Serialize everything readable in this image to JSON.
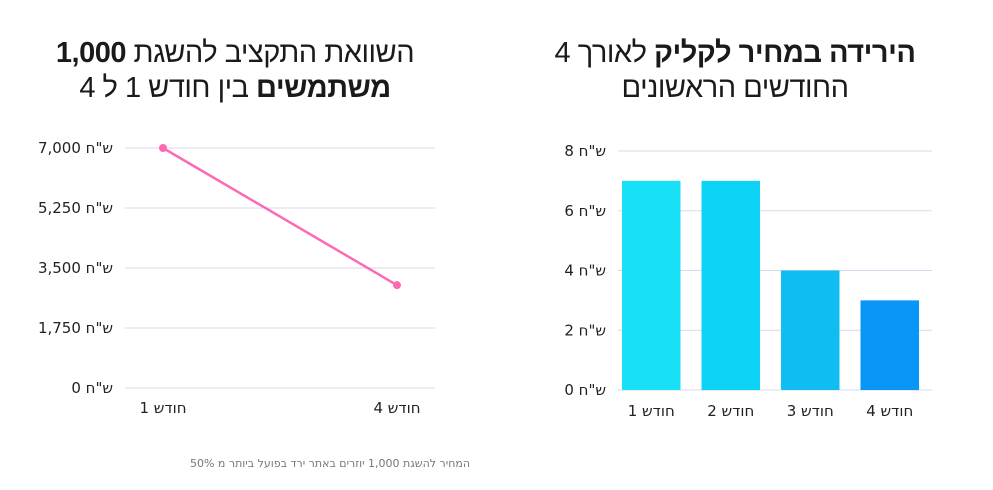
{
  "charts": {
    "left": {
      "title_parts": [
        {
          "text": "השוואת התקציב להשגת ",
          "bold": false
        },
        {
          "text": "1,000",
          "bold": true
        },
        {
          "text": " ",
          "bold": false
        },
        {
          "text": "משתמשים",
          "bold": true
        },
        {
          "text": " בין חודש 1 ל 4",
          "bold": false
        }
      ]
    },
    "right": {
      "title_parts": [
        {
          "text": "הירידה במחיר לקליק",
          "bold": true
        },
        {
          "text": " לאורך 4 החודשים הראשונים",
          "bold": false
        }
      ]
    }
  },
  "footnote": "המחיר להשגת 1,000 יוזרים באתר ירד בפועל ביותר מ 50%",
  "colors": {
    "line": "#ff69b4",
    "bars": [
      "#17e0f7",
      "#0cd2f5",
      "#10bdf3",
      "#0996f7"
    ],
    "grid": "#d8d8ee"
  },
  "chart_data": [
    {
      "type": "line",
      "title": "השוואת התקציב להשגת 1,000 משתמשים בין חודש 1 ל 4",
      "categories": [
        "חודש 1",
        "חודש 4"
      ],
      "series": [
        {
          "values": [
            7000,
            3000
          ]
        }
      ],
      "ylim": [
        0,
        7000
      ],
      "yticks": [
        0,
        1750,
        3500,
        5250,
        7000
      ],
      "ytick_labels": [
        "0 ש\"ח",
        "1,750 ש\"ח",
        "3,500 ש\"ח",
        "5,250 ש\"ח",
        "7,000 ש\"ח"
      ],
      "grid": true
    },
    {
      "type": "bar",
      "title": "הירידה במחיר לקליק לאורך 4 החודשים הראשונים",
      "categories": [
        "חודש 1",
        "חודש 2",
        "חודש 3",
        "חודש 4"
      ],
      "values": [
        7,
        7,
        4,
        3
      ],
      "ylim": [
        0,
        8
      ],
      "yticks": [
        0,
        2,
        4,
        6,
        8
      ],
      "ytick_labels": [
        "0 ש\"ח",
        "2 ש\"ח",
        "4 ש\"ח",
        "6 ש\"ח",
        "8 ש\"ח"
      ],
      "grid": true
    }
  ]
}
